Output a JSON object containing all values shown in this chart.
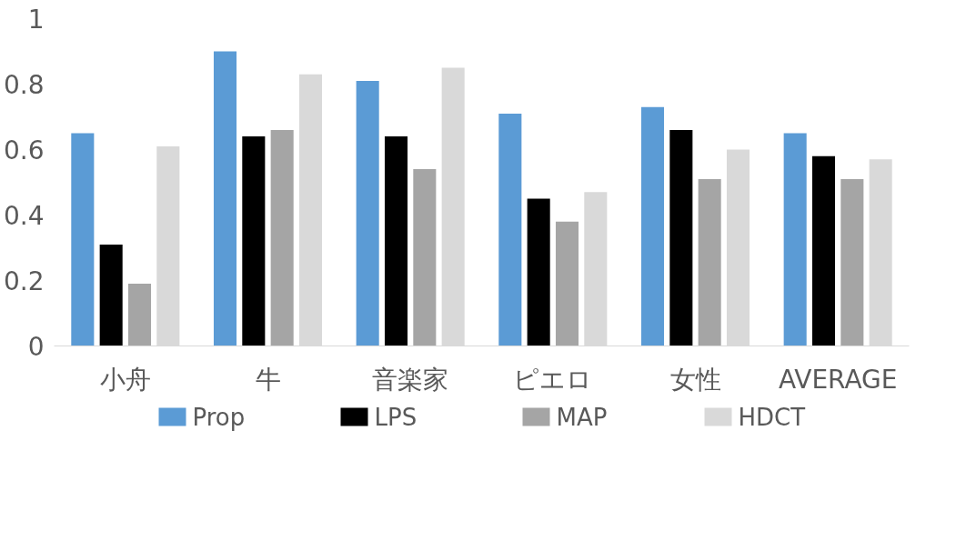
{
  "chart_data": {
    "type": "bar",
    "categories": [
      "小舟",
      "牛",
      "音楽家",
      "ピエロ",
      "女性",
      "AVERAGE"
    ],
    "series": [
      {
        "name": "Prop",
        "color": "#5b9bd5",
        "values": [
          0.65,
          0.9,
          0.81,
          0.71,
          0.73,
          0.65
        ]
      },
      {
        "name": "LPS",
        "color": "#000000",
        "values": [
          0.31,
          0.64,
          0.64,
          0.45,
          0.66,
          0.58
        ]
      },
      {
        "name": "MAP",
        "color": "#a5a5a5",
        "values": [
          0.19,
          0.66,
          0.54,
          0.38,
          0.51,
          0.51
        ]
      },
      {
        "name": "HDCT",
        "color": "#d9d9d9",
        "values": [
          0.61,
          0.83,
          0.85,
          0.47,
          0.6,
          0.57
        ]
      }
    ],
    "ylim": [
      0,
      1
    ],
    "yticks": [
      0,
      0.2,
      0.4,
      0.6,
      0.8,
      1
    ],
    "grid": false,
    "legend": "bottom"
  }
}
